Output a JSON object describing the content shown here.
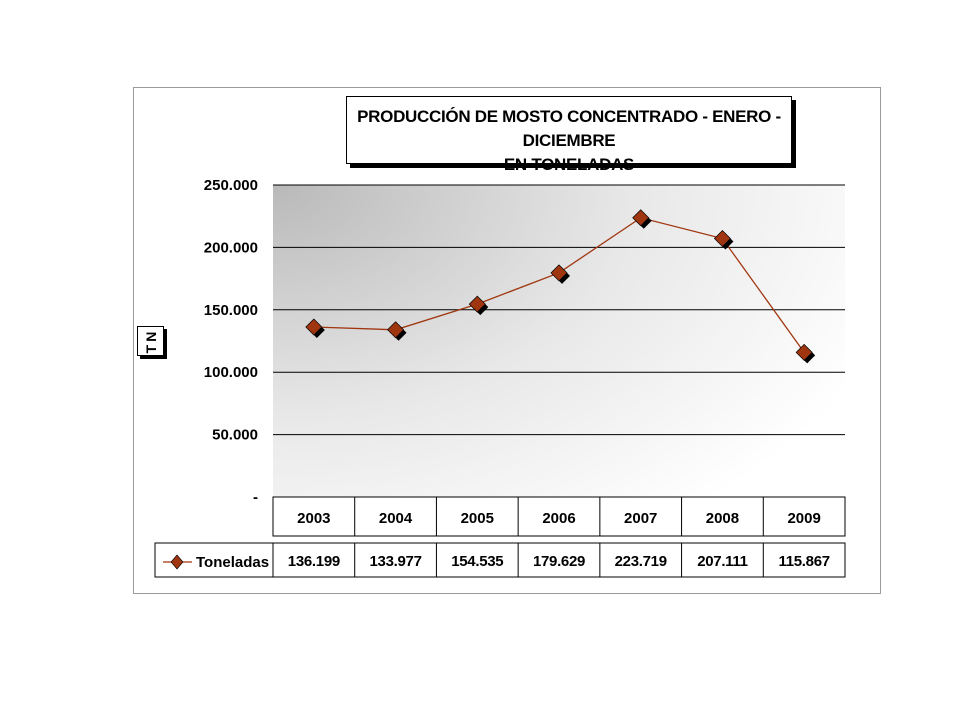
{
  "chart_data": {
    "type": "line",
    "title_line1": "PRODUCCIÓN DE MOSTO CONCENTRADO - ENERO - DICIEMBRE",
    "title_line2": "EN TONELADAS",
    "ylabel": "TN",
    "xlabel": "",
    "categories": [
      "2003",
      "2004",
      "2005",
      "2006",
      "2007",
      "2008",
      "2009"
    ],
    "series": [
      {
        "name": "Toneladas",
        "values": [
          136199,
          133977,
          154535,
          179629,
          223719,
          207111,
          115867
        ],
        "value_labels": [
          "136.199",
          "133.977",
          "154.535",
          "179.629",
          "223.719",
          "207.111",
          "115.867"
        ],
        "color": "#a0360f"
      }
    ],
    "ylim": [
      0,
      250000
    ],
    "y_ticks": [
      0,
      50000,
      100000,
      150000,
      200000,
      250000
    ],
    "y_tick_labels": [
      "-",
      "50.000",
      "100.000",
      "150.000",
      "200.000",
      "250.000"
    ],
    "grid": true,
    "legend": "data-table-left",
    "data_table": true
  },
  "colors": {
    "line": "#a0360f",
    "marker": "#a0360f",
    "marker_shadow": "#000000",
    "gradient_dark": "#bdbdbd",
    "gradient_light": "#ffffff"
  }
}
